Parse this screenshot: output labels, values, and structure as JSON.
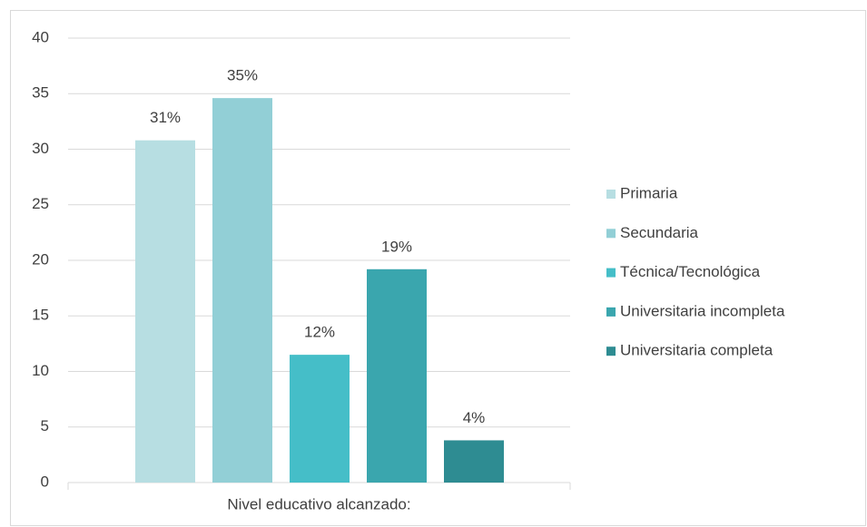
{
  "chart_data": {
    "type": "bar",
    "categories": [
      "Nivel educativo alcanzado:"
    ],
    "series": [
      {
        "name": "Primaria",
        "color": "#b7dee2",
        "values": [
          30.8
        ],
        "value_labels": [
          "31%"
        ]
      },
      {
        "name": "Secundaria",
        "color": "#92cfd6",
        "values": [
          34.6
        ],
        "value_labels": [
          "35%"
        ]
      },
      {
        "name": "Técnica/Tecnológica",
        "color": "#45bec8",
        "values": [
          11.5
        ],
        "value_labels": [
          "12%"
        ]
      },
      {
        "name": "Universitaria incompleta",
        "color": "#3aa6ae",
        "values": [
          19.2
        ],
        "value_labels": [
          "19%"
        ]
      },
      {
        "name": "Universitaria completa",
        "color": "#2e8c92",
        "values": [
          3.8
        ],
        "value_labels": [
          "4%"
        ]
      }
    ],
    "ylim": [
      0,
      40
    ],
    "yticks": [
      0,
      5,
      10,
      15,
      20,
      25,
      30,
      35,
      40
    ],
    "grid": true,
    "legend": "right"
  }
}
